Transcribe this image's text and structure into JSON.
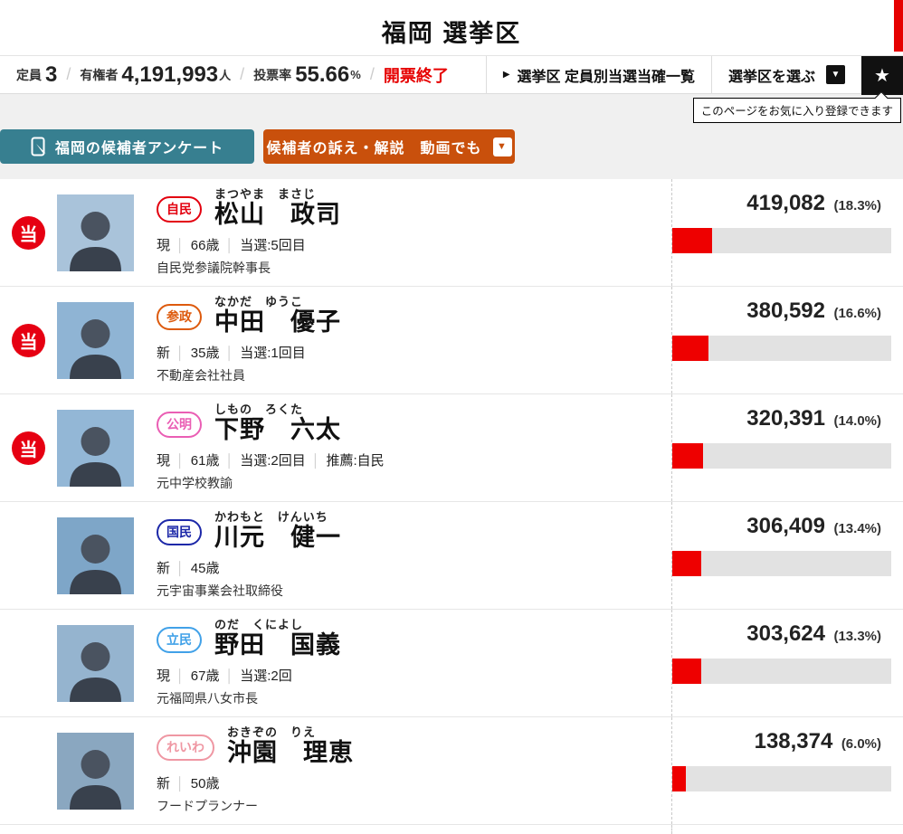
{
  "page": {
    "title": "福岡 選挙区"
  },
  "header": {
    "seats_label": "定員",
    "seats_value": "3",
    "voters_label": "有権者",
    "voters_value": "4,191,993",
    "voters_unit": "人",
    "turnout_label": "投票率",
    "turnout_value": "55.66",
    "turnout_unit": "%",
    "count_status": "開票終了",
    "separator": "/",
    "list_link_label": "選挙区 定員別当選当確一覧",
    "list_link_marker": "▶",
    "district_select_label": "選挙区を選ぶ",
    "dropdown_glyph": "▼",
    "star_glyph": "★",
    "tooltip_text": "このページをお気に入り登録できます"
  },
  "actions": {
    "survey_label": "福岡の候補者アンケート",
    "video_label": "候補者の訴え・解説　動画でも"
  },
  "ui": {
    "elected_label": "当",
    "detail_separator": "│",
    "accent_red": "#e60012",
    "bar_red": "#ee0000",
    "bar_bg": "#e2e2e2"
  },
  "candidates": [
    {
      "elected": true,
      "party": "自民",
      "party_color": "#e3000f",
      "kana": "まつやま　まさじ",
      "name": "松山　政司",
      "details": [
        "現",
        "66歳",
        "当選:5回目"
      ],
      "occupation": "自民党参議院幹事長",
      "votes": "419,082",
      "pct": "(18.3%)",
      "pct_value": 18.3,
      "photo_bg": "#a9c3da"
    },
    {
      "elected": true,
      "party": "参政",
      "party_color": "#dd5a0d",
      "kana": "なかだ　ゆうこ",
      "name": "中田　優子",
      "details": [
        "新",
        "35歳",
        "当選:1回目"
      ],
      "occupation": "不動産会社社員",
      "votes": "380,592",
      "pct": "(16.6%)",
      "pct_value": 16.6,
      "photo_bg": "#8fb4d4"
    },
    {
      "elected": true,
      "party": "公明",
      "party_color": "#ea5eb4",
      "kana": "しもの　ろくた",
      "name": "下野　六太",
      "details": [
        "現",
        "61歳",
        "当選:2回目",
        "推薦:自民"
      ],
      "occupation": "元中学校教諭",
      "votes": "320,391",
      "pct": "(14.0%)",
      "pct_value": 14.0,
      "photo_bg": "#93b7d6"
    },
    {
      "elected": false,
      "party": "国民",
      "party_color": "#1c28a8",
      "kana": "かわもと　けんいち",
      "name": "川元　健一",
      "details": [
        "新",
        "45歳"
      ],
      "occupation": "元宇宙事業会社取締役",
      "votes": "306,409",
      "pct": "(13.4%)",
      "pct_value": 13.4,
      "photo_bg": "#7ea6c8"
    },
    {
      "elected": false,
      "party": "立民",
      "party_color": "#41a1e8",
      "kana": "のだ　くによし",
      "name": "野田　国義",
      "details": [
        "現",
        "67歳",
        "当選:2回"
      ],
      "occupation": "元福岡県八女市長",
      "votes": "303,624",
      "pct": "(13.3%)",
      "pct_value": 13.3,
      "photo_bg": "#95b4cf"
    },
    {
      "elected": false,
      "party": "れいわ",
      "party_color": "#ef97a3",
      "kana": "おきぞの　りえ",
      "name": "沖園　理恵",
      "details": [
        "新",
        "50歳"
      ],
      "occupation": "フードプランナー",
      "votes": "138,374",
      "pct": "(6.0%)",
      "pct_value": 6.0,
      "photo_bg": "#8aa7c0"
    }
  ]
}
